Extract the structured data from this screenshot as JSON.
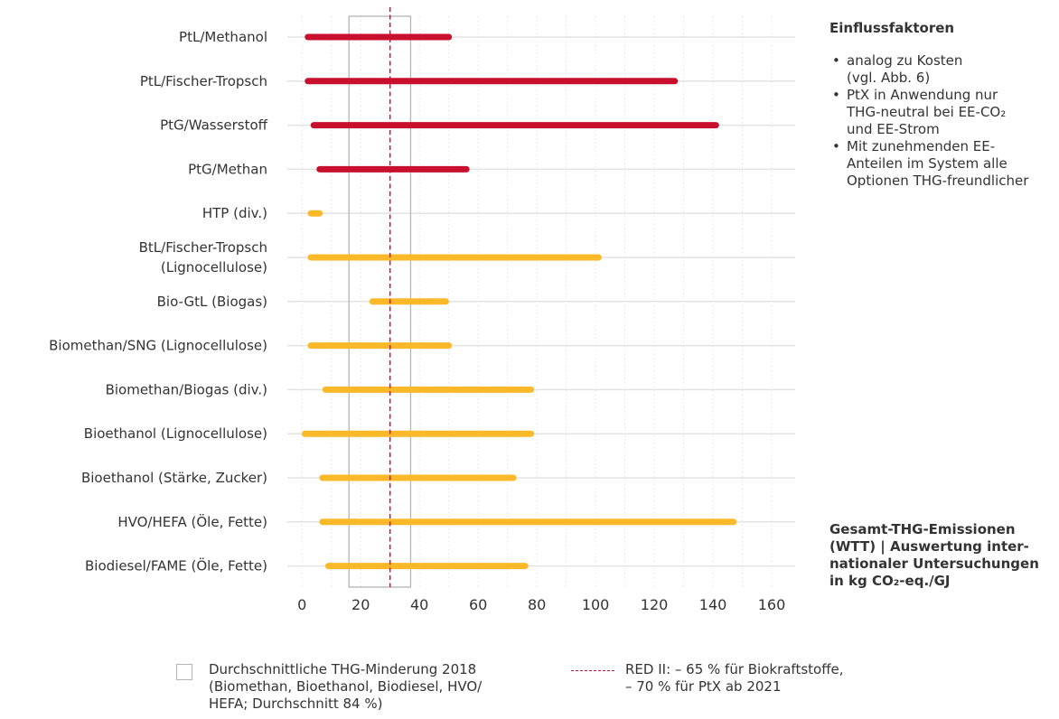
{
  "chart_data": {
    "type": "bar",
    "orientation": "horizontal-range",
    "categories": [
      {
        "label": [
          "PtL/Methanol"
        ],
        "min": 2,
        "max": 50,
        "color": "#c8102e"
      },
      {
        "label": [
          "PtL/Fischer-Tropsch"
        ],
        "min": 2,
        "max": 127,
        "color": "#c8102e"
      },
      {
        "label": [
          "PtG/Wasserstoff"
        ],
        "min": 4,
        "max": 141,
        "color": "#c8102e"
      },
      {
        "label": [
          "PtG/Methan"
        ],
        "min": 6,
        "max": 56,
        "color": "#c8102e"
      },
      {
        "label": [
          "HTP (div.)"
        ],
        "min": 3,
        "max": 6,
        "color": "#fbb829"
      },
      {
        "label": [
          "BtL/Fischer-Tropsch",
          "(Lignocellulose)"
        ],
        "min": 3,
        "max": 101,
        "color": "#fbb829"
      },
      {
        "label": [
          "Bio-GtL (Biogas)"
        ],
        "min": 24,
        "max": 49,
        "color": "#fbb829"
      },
      {
        "label": [
          "Biomethan/SNG (Lignocellulose)"
        ],
        "min": 3,
        "max": 50,
        "color": "#fbb829"
      },
      {
        "label": [
          "Biomethan/Biogas (div.)"
        ],
        "min": 8,
        "max": 78,
        "color": "#fbb829"
      },
      {
        "label": [
          "Bioethanol (Lignocellulose)"
        ],
        "min": 1,
        "max": 78,
        "color": "#fbb829"
      },
      {
        "label": [
          "Bioethanol (Stärke, Zucker)"
        ],
        "min": 7,
        "max": 72,
        "color": "#fbb829"
      },
      {
        "label": [
          "HVO/HEFA (Öle, Fette)"
        ],
        "min": 7,
        "max": 147,
        "color": "#fbb829"
      },
      {
        "label": [
          "Biodiesel/FAME (Öle, Fette)"
        ],
        "min": 9,
        "max": 76,
        "color": "#fbb829"
      }
    ],
    "x_ticks": [
      0,
      20,
      40,
      60,
      80,
      100,
      120,
      140,
      160
    ],
    "xlim": [
      -5,
      168
    ],
    "grid": true,
    "reference_band": {
      "from": 16,
      "to": 37,
      "color": "#b5b5b5"
    },
    "reference_line": {
      "x": 30,
      "color": "#c8102e",
      "style": "dashed"
    },
    "xlabel": [
      "Gesamt-THG-Emissionen",
      "(WTT) | Auswertung inter-",
      "nationaler Untersuchungen",
      "in kg CO₂-eq./GJ"
    ]
  },
  "sidebar": {
    "title": "Einflussfaktoren",
    "items": [
      [
        "analog zu Kosten",
        "(vgl. Abb. 6)"
      ],
      [
        "PtX in Anwendung nur",
        "THG-neutral bei EE-CO₂",
        "und EE-Strom"
      ],
      [
        "Mit zunehmenden EE-",
        "Anteilen im System alle",
        "Optionen THG-freundlicher"
      ]
    ]
  },
  "legend": {
    "box_lines": [
      "Durchschnittliche THG-Minderung 2018",
      "(Biomethan, Bioethanol, Biodiesel, HVO/",
      "HEFA; Durchschnitt 84 %)"
    ],
    "line_lines": [
      "RED II: – 65 % für Biokraftstoffe,",
      "– 70 % für PtX ab 2021"
    ]
  }
}
